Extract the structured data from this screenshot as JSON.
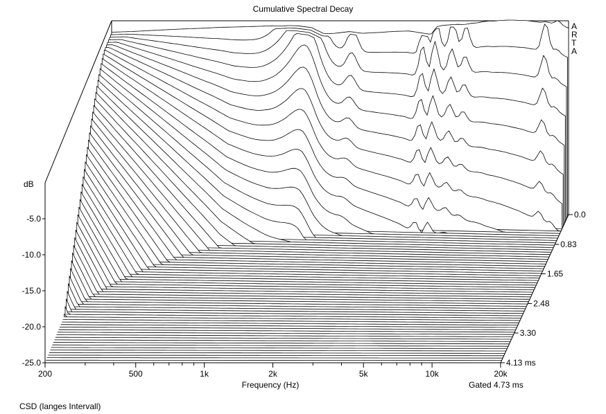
{
  "chart_data": {
    "type": "waterfall",
    "title": "Cumulative Spectral Decay",
    "xlabel": "Frequency (Hz)",
    "x_scale": "log",
    "xlim": [
      200,
      20000
    ],
    "x_ticks": [
      {
        "value": 200,
        "label": "200"
      },
      {
        "value": 500,
        "label": "500"
      },
      {
        "value": 1000,
        "label": "1k"
      },
      {
        "value": 2000,
        "label": "2k"
      },
      {
        "value": 5000,
        "label": "5k"
      },
      {
        "value": 10000,
        "label": "10k"
      },
      {
        "value": 20000,
        "label": "20k"
      }
    ],
    "ylabel": "dB",
    "ylim": [
      -25,
      0
    ],
    "y_ticks": [
      {
        "value": -5,
        "label": "-5.0"
      },
      {
        "value": -10,
        "label": "-10.0"
      },
      {
        "value": -15,
        "label": "-15.0"
      },
      {
        "value": -20,
        "label": "-20.0"
      },
      {
        "value": -25,
        "label": "-25.0"
      }
    ],
    "zlabel": "ms",
    "zlim": [
      0,
      4.13
    ],
    "z_ticks": [
      {
        "value": 0,
        "label": "0.0"
      },
      {
        "value": 0.83,
        "label": "0.83"
      },
      {
        "value": 1.65,
        "label": "1.65"
      },
      {
        "value": 2.48,
        "label": "2.48"
      },
      {
        "value": 3.3,
        "label": "3.30"
      },
      {
        "value": 4.13,
        "label": "4.13 ms"
      }
    ],
    "slice_count": 64,
    "gate_label": "Gated 4.73 ms",
    "footer_label": "CSD (langes Intervall)",
    "watermark": "ARTA",
    "initial_response": {
      "freq": [
        180,
        200,
        250,
        300,
        400,
        500,
        600,
        700,
        800,
        900,
        1000,
        1100,
        1200,
        1300,
        1400,
        1500,
        1700,
        1900,
        2000,
        2200,
        2500,
        3000,
        3500,
        4000,
        4500,
        5000,
        5300,
        5600,
        6000,
        6500,
        7000,
        7500,
        8000,
        8500,
        9000,
        9500,
        10000,
        11000,
        12000,
        13000,
        14000,
        15000,
        16000,
        17000,
        18000,
        19000,
        20000
      ],
      "db": [
        -1.8,
        -1.4,
        -1.2,
        -1.0,
        -0.7,
        -0.5,
        -0.3,
        -0.2,
        -0.1,
        0.0,
        0.1,
        0.1,
        0.2,
        0.2,
        0.1,
        0.0,
        -0.8,
        -0.7,
        -0.6,
        -0.4,
        -0.6,
        -0.4,
        -0.2,
        -0.1,
        -0.3,
        -0.5,
        0.6,
        0.8,
        0.9,
        1.0,
        1.0,
        1.2,
        1.3,
        1.5,
        1.6,
        1.6,
        1.7,
        1.8,
        1.8,
        1.8,
        1.7,
        1.6,
        1.7,
        1.5,
        2.0,
        1.2,
        0.9
      ]
    }
  }
}
